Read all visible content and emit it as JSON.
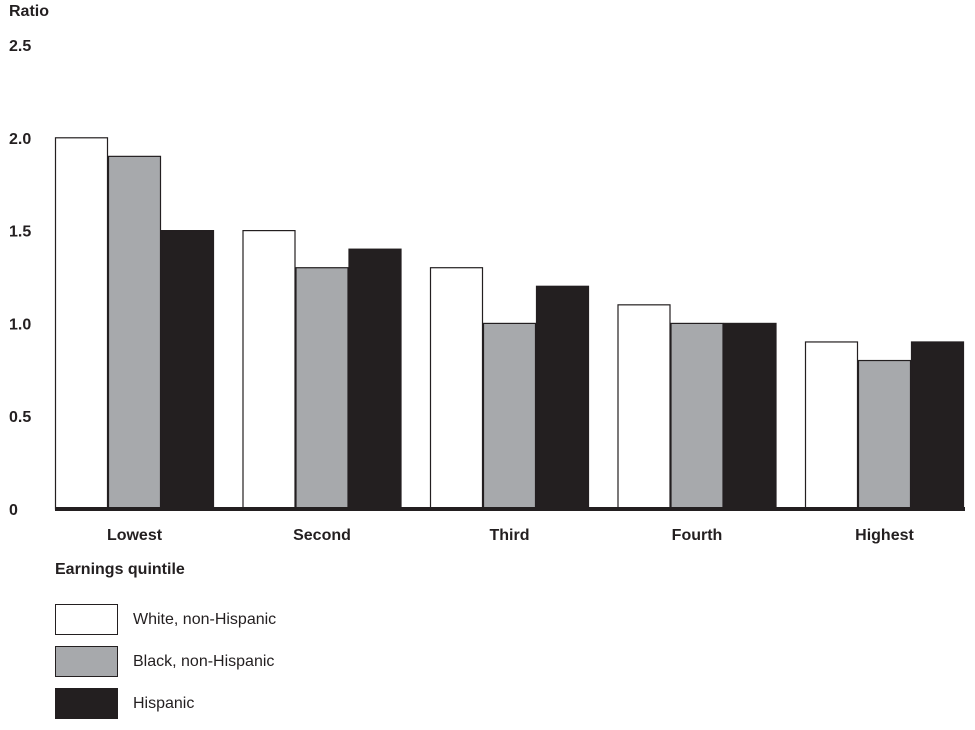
{
  "chart_data": {
    "type": "bar",
    "ylabel": "Ratio",
    "xlabel": "Earnings quintile",
    "categories": [
      "Lowest",
      "Second",
      "Third",
      "Fourth",
      "Highest"
    ],
    "yticks": [
      "0",
      "0.5",
      "1.0",
      "1.5",
      "2.0",
      "2.5"
    ],
    "ylim": [
      0,
      2.5
    ],
    "grid": false,
    "legend_position": "bottom-left",
    "series": [
      {
        "name": "White, non-Hispanic",
        "color": "#ffffff",
        "values": [
          2.0,
          1.5,
          1.3,
          1.1,
          0.9
        ]
      },
      {
        "name": "Black, non-Hispanic",
        "color": "#a7a9ac",
        "values": [
          1.9,
          1.3,
          1.0,
          1.0,
          0.8
        ]
      },
      {
        "name": "Hispanic",
        "color": "#231f20",
        "values": [
          1.5,
          1.4,
          1.2,
          1.0,
          0.9
        ]
      }
    ]
  }
}
